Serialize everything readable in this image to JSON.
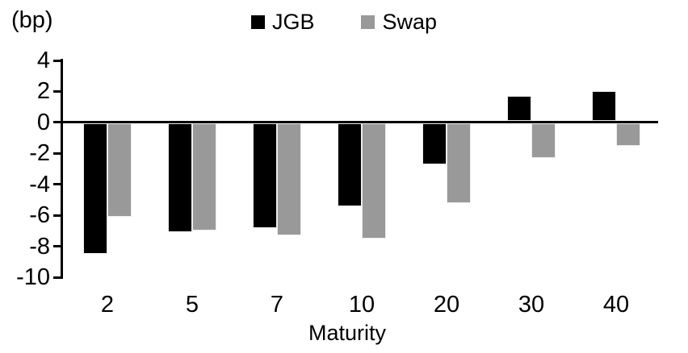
{
  "chart": {
    "unit_label": "(bp)",
    "xlabel": "Maturity"
  },
  "chart_data": {
    "type": "bar",
    "title": "",
    "unit_label": "(bp)",
    "xlabel": "Maturity",
    "ylabel": "(bp)",
    "categories": [
      "2",
      "5",
      "7",
      "10",
      "20",
      "30",
      "40"
    ],
    "series": [
      {
        "name": "JGB",
        "color": "#000000",
        "values": [
          -8.5,
          -7.1,
          -6.8,
          -5.4,
          -2.7,
          1.7,
          2.0
        ]
      },
      {
        "name": "Swap",
        "color": "#999999",
        "values": [
          -6.1,
          -7.0,
          -7.3,
          -7.5,
          -5.2,
          -2.3,
          -1.5
        ]
      }
    ],
    "ylim": [
      -10,
      4
    ],
    "yticks": [
      4,
      2,
      0,
      -2,
      -4,
      -6,
      -8,
      -10
    ],
    "grid": false,
    "legend_position": "top-center",
    "axis_color": "#000000",
    "background": "#ffffff"
  }
}
